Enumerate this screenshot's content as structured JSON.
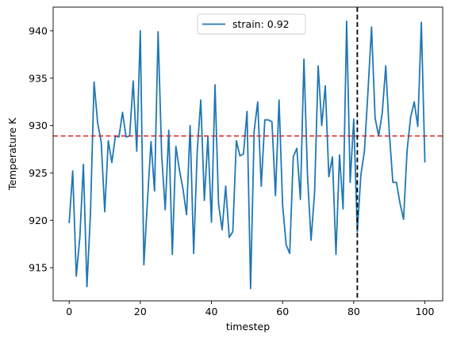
{
  "chart_data": {
    "type": "line",
    "title": "",
    "xlabel": "timestep",
    "ylabel": "Temperature K",
    "xlim": [
      -4.5,
      105
    ],
    "ylim": [
      911.5,
      942.5
    ],
    "xticks": [
      0,
      20,
      40,
      60,
      80,
      100
    ],
    "yticks": [
      915,
      920,
      925,
      930,
      935,
      940
    ],
    "legend": {
      "placement": "top-center"
    },
    "grid": false,
    "series": [
      {
        "name": "strain: 0.92",
        "color": "#1f77b4",
        "x": [
          0,
          1,
          2,
          3,
          4,
          5,
          6,
          7,
          8,
          9,
          10,
          11,
          12,
          13,
          14,
          15,
          16,
          17,
          18,
          19,
          20,
          21,
          22,
          23,
          24,
          25,
          26,
          27,
          28,
          29,
          30,
          31,
          32,
          33,
          34,
          35,
          36,
          37,
          38,
          39,
          40,
          41,
          42,
          43,
          44,
          45,
          46,
          47,
          48,
          49,
          50,
          51,
          52,
          53,
          54,
          55,
          56,
          57,
          58,
          59,
          60,
          61,
          62,
          63,
          64,
          65,
          66,
          67,
          68,
          69,
          70,
          71,
          72,
          73,
          74,
          75,
          76,
          77,
          78,
          79,
          80,
          81,
          82,
          83,
          84,
          85,
          86,
          87,
          88,
          89,
          90,
          91,
          92,
          93,
          94,
          95,
          96,
          97,
          98,
          99,
          100
        ],
        "values": [
          919.7,
          925.2,
          914.1,
          918.2,
          925.9,
          913.0,
          920.8,
          934.6,
          930.3,
          928.3,
          920.9,
          928.4,
          926.1,
          928.9,
          928.8,
          931.4,
          928.8,
          928.9,
          934.7,
          927.3,
          940.0,
          915.3,
          922.0,
          928.3,
          923.1,
          939.9,
          926.9,
          921.1,
          929.5,
          916.4,
          927.8,
          925.3,
          923.3,
          920.6,
          930.0,
          916.5,
          927.3,
          932.7,
          922.1,
          928.8,
          919.8,
          934.3,
          921.7,
          919.0,
          923.6,
          918.2,
          918.8,
          928.4,
          926.8,
          927.0,
          931.5,
          912.8,
          929.4,
          932.5,
          923.6,
          930.6,
          930.6,
          930.4,
          922.6,
          932.7,
          921.6,
          917.4,
          916.5,
          926.7,
          927.6,
          922.2,
          937.0,
          924.7,
          917.9,
          923.0,
          936.3,
          930.0,
          934.2,
          924.6,
          926.7,
          916.4,
          926.9,
          921.2,
          941.0,
          924.0,
          930.7,
          918.8,
          924.8,
          927.3,
          933.6,
          940.4,
          930.8,
          928.9,
          931.3,
          936.3,
          929.2,
          924.0,
          924.0,
          921.8,
          920.1,
          927.4,
          930.9,
          932.5,
          929.9,
          940.9,
          926.1
        ]
      }
    ],
    "annotations": [
      {
        "type": "hline",
        "y": 928.9,
        "color": "#d62728",
        "style": "dashed"
      },
      {
        "type": "vline",
        "x": 81,
        "color": "#000000",
        "style": "dashed"
      }
    ]
  }
}
